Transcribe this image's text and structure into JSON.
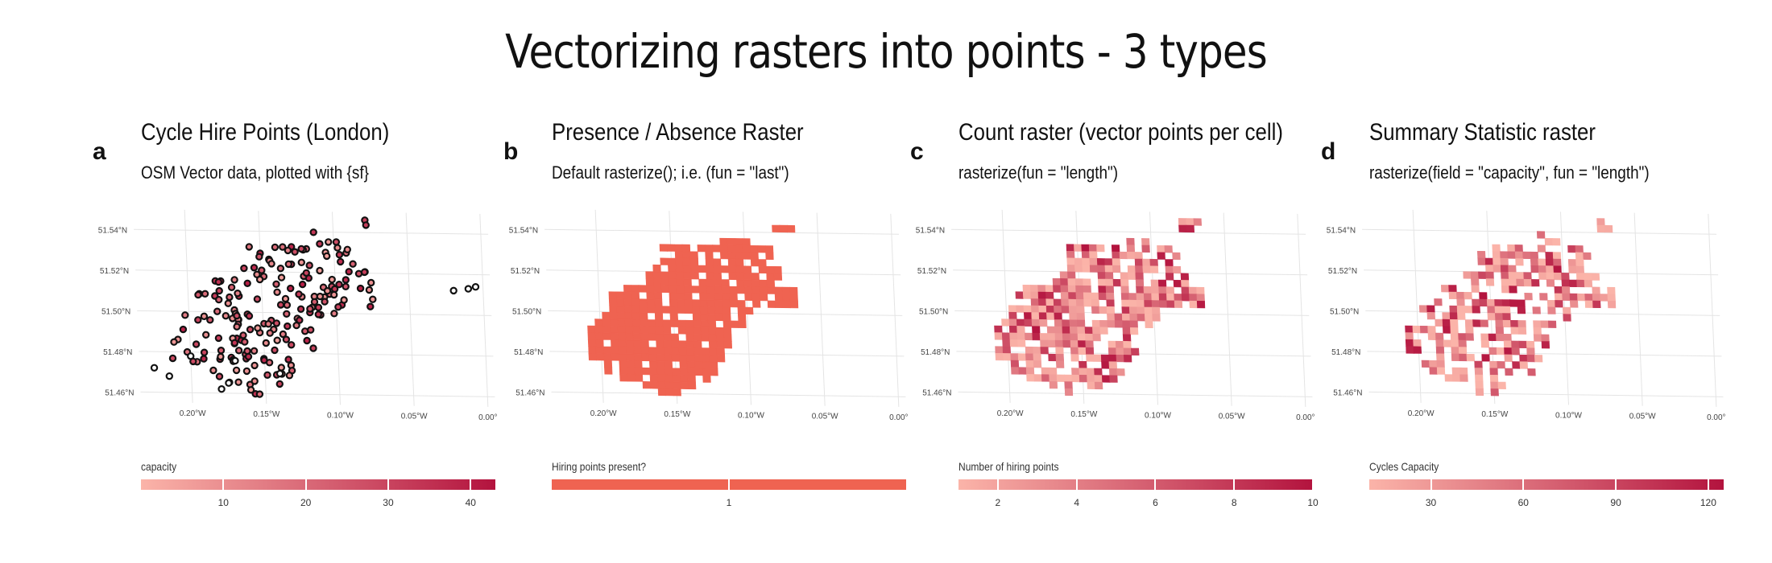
{
  "title": "Vectorizing rasters into points - 3 types",
  "axis_common": {
    "x_ticks": [
      "0.20°W",
      "0.15°W",
      "0.10°W",
      "0.05°W",
      "0.00°"
    ],
    "y_ticks": [
      "51.54°N",
      "51.52°N",
      "51.50°N",
      "51.48°N",
      "51.46°N"
    ]
  },
  "colors": {
    "point_fill": "#111111",
    "raster_single": "#ef6351",
    "scale_low": "#fbb4a9",
    "scale_high": "#b3133e"
  },
  "panels": [
    {
      "letter": "a",
      "title": "Cycle Hire Points (London)",
      "subtitle": "OSM Vector data, plotted with {sf}",
      "legend_title": "capacity",
      "legend_labels": [
        "10",
        "20",
        "30",
        "40"
      ]
    },
    {
      "letter": "b",
      "title": "Presence / Absence Raster",
      "subtitle": "Default rasterize(); i.e. (fun = \"last\")",
      "legend_title": "Hiring points present?",
      "legend_labels": [
        "1"
      ]
    },
    {
      "letter": "c",
      "title": "Count raster (vector points per cell)",
      "subtitle": "rasterize(fun = \"length\")",
      "legend_title": "Number of hiring points",
      "legend_labels": [
        "2",
        "4",
        "6",
        "8",
        "10"
      ]
    },
    {
      "letter": "d",
      "title": "Summary Statistic raster",
      "subtitle": "rasterize(field = \"capacity\", fun = \"length\")",
      "legend_title": "Cycles Capacity",
      "legend_labels": [
        "30",
        "60",
        "90",
        "120"
      ]
    }
  ],
  "chart_data": [
    {
      "type": "scatter",
      "title": "Cycle Hire Points (London)",
      "subtitle": "OSM Vector data, plotted with {sf}",
      "xlabel": "",
      "ylabel": "",
      "xlim": [
        -0.235,
        0.005
      ],
      "ylim": [
        51.455,
        51.55
      ],
      "grid": true,
      "legend": {
        "title": "capacity",
        "range": [
          0,
          43
        ],
        "ticks": [
          10,
          20,
          30,
          40
        ]
      },
      "footprint": {
        "rows_north_to_south": [
          [
            0.65,
            0.72
          ],
          [
            0.48,
            0.53
          ],
          [
            0.48,
            0.59
          ],
          [
            0.3,
            0.64
          ],
          [
            0.3,
            0.63
          ],
          [
            0.28,
            0.67
          ],
          [
            0.26,
            0.68
          ],
          [
            0.18,
            0.71
          ],
          [
            0.15,
            0.72
          ],
          [
            0.14,
            0.71
          ],
          [
            0.12,
            0.58
          ],
          [
            0.1,
            0.56
          ],
          [
            0.09,
            0.52
          ],
          [
            0.08,
            0.52
          ],
          [
            0.08,
            0.5
          ],
          [
            0.07,
            0.48
          ],
          [
            0.12,
            0.47
          ],
          [
            0.18,
            0.44
          ],
          [
            0.24,
            0.4
          ],
          [
            0.28,
            0.35
          ]
        ],
        "extra_points": [
          [
            -0.225,
            51.472
          ],
          [
            -0.215,
            51.468
          ],
          [
            -0.175,
            51.465
          ],
          [
            -0.18,
            51.462
          ],
          [
            -0.14,
            51.47
          ],
          [
            -0.17,
            51.476
          ],
          [
            -0.2,
            51.478
          ],
          [
            -0.02,
            51.512
          ],
          [
            -0.01,
            51.513
          ],
          [
            -0.005,
            51.514
          ]
        ]
      }
    },
    {
      "type": "heatmap",
      "title": "Presence / Absence Raster",
      "subtitle": "Default rasterize(); i.e. (fun = \"last\")",
      "xlim": [
        -0.235,
        0.005
      ],
      "ylim": [
        51.455,
        51.55
      ],
      "legend": {
        "title": "Hiring points present?",
        "values": [
          1
        ]
      },
      "grid": {
        "cols": 44,
        "rows": 26,
        "xmin": -0.229,
        "xmax": -0.004,
        "ymin": 51.459,
        "ymax": 51.547,
        "source": "footprint of panel a",
        "value": 1
      }
    },
    {
      "type": "heatmap",
      "title": "Count raster (vector points per cell)",
      "subtitle": "rasterize(fun = \"length\")",
      "xlim": [
        -0.235,
        0.005
      ],
      "ylim": [
        51.455,
        51.55
      ],
      "legend": {
        "title": "Number of hiring points",
        "range": [
          1,
          10
        ],
        "ticks": [
          2,
          4,
          6,
          8,
          10
        ]
      },
      "grid": {
        "cols": 44,
        "rows": 26,
        "xmin": -0.229,
        "xmax": -0.004,
        "ymin": 51.459,
        "ymax": 51.547,
        "source": "footprint of panel a",
        "value_range": [
          1,
          10
        ]
      }
    },
    {
      "type": "heatmap",
      "title": "Summary Statistic raster",
      "subtitle": "rasterize(field = \"capacity\", fun = \"length\")",
      "xlim": [
        -0.235,
        0.005
      ],
      "ylim": [
        51.455,
        51.55
      ],
      "legend": {
        "title": "Cycles Capacity",
        "range": [
          10,
          125
        ],
        "ticks": [
          30,
          60,
          90,
          120
        ]
      },
      "grid": {
        "cols": 44,
        "rows": 26,
        "xmin": -0.229,
        "xmax": -0.004,
        "ymin": 51.459,
        "ymax": 51.547,
        "source": "sparser footprint of panel a",
        "value_range": [
          10,
          125
        ]
      }
    }
  ]
}
